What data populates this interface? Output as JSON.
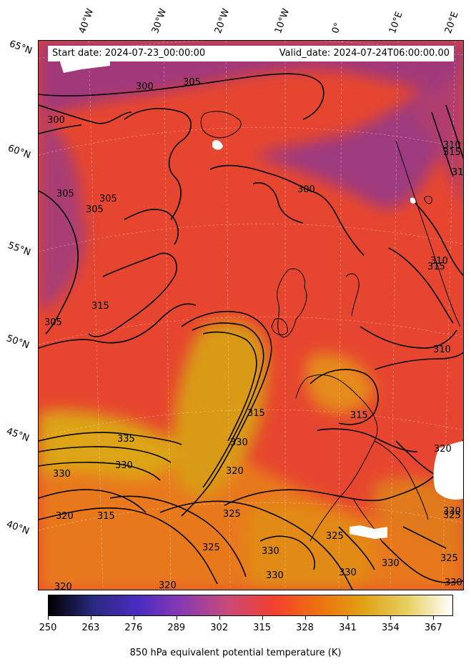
{
  "header": {
    "start_date": "Start date: 2024-07-23_00:00:00",
    "valid_date": "Valid_date: 2024-07-24T06:00:00.00"
  },
  "graticule": {
    "longitudes": [
      "40°W",
      "30°W",
      "20°W",
      "10°W",
      "0°",
      "10°E",
      "20°E"
    ],
    "latitudes": [
      "65°N",
      "60°N",
      "55°N",
      "50°N",
      "45°N",
      "40°N"
    ]
  },
  "contour_levels": [
    "300",
    "305",
    "300",
    "305",
    "305",
    "305",
    "300",
    "310",
    "315",
    "315",
    "315",
    "305",
    "315",
    "310",
    "315",
    "335",
    "330",
    "330",
    "330",
    "320",
    "320",
    "325",
    "315",
    "325",
    "325",
    "330",
    "330",
    "330",
    "330",
    "320",
    "325",
    "330",
    "325",
    "330",
    "320",
    "320",
    "310",
    "315"
  ],
  "colorbar": {
    "ticks": [
      "250",
      "263",
      "276",
      "289",
      "302",
      "315",
      "328",
      "341",
      "354",
      "367"
    ],
    "label": "850 hPa equivalent potential temperature (K)",
    "colormap": "CMRmap",
    "colors": [
      "#000000",
      "#2a2a80",
      "#4b2bc0",
      "#8a3ab0",
      "#c84a78",
      "#f23f30",
      "#ee7010",
      "#e0a014",
      "#e6d060",
      "#ffffff"
    ]
  },
  "field_colors": {
    "cool": "#a0387a",
    "mid": "#e24436",
    "warm": "#e8781a",
    "hot": "#d8a40e"
  }
}
